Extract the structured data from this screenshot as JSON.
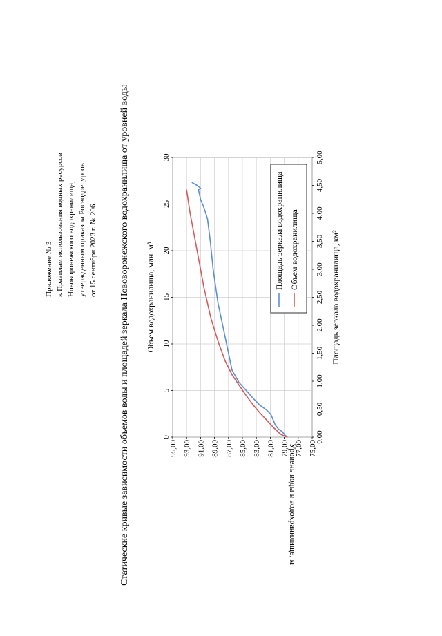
{
  "header": {
    "lines": [
      "Приложение № 3",
      "к Правилам использования водных ресурсов",
      "Нововоронежского водохранилища,",
      "утвержденным приказом Росводресурсов",
      "от 15 сентября 2023 г. № 206"
    ]
  },
  "chart_data": {
    "type": "line",
    "title": "Статические кривые зависимости объемов воды и площадей зеркала Нововоронежского водохранилища от уровней воды",
    "level_axis": {
      "label": "Уровень воды в водохранилище, м",
      "range": [
        75,
        95
      ],
      "ticks": [
        "75,00",
        "77,00",
        "79,00",
        "81,00",
        "83,00",
        "85,00",
        "87,00",
        "89,00",
        "91,00",
        "93,00",
        "95,00"
      ]
    },
    "volume_axis": {
      "label": "Объем водохранилища, млн. м³",
      "range": [
        0,
        30
      ],
      "ticks": [
        "0",
        "5",
        "10",
        "15",
        "20",
        "25",
        "30"
      ]
    },
    "area_axis": {
      "label": "Площадь зеркала водохранилища, км²",
      "range": [
        0,
        5
      ],
      "ticks": [
        "0,00",
        "0,50",
        "1,00",
        "1,50",
        "2,00",
        "2,50",
        "3,00",
        "3,50",
        "4,00",
        "4,50",
        "5,00"
      ]
    },
    "grid": true,
    "legend_position": "right",
    "series": [
      {
        "name": "Площадь зеркала водохранилища",
        "color": "#5b8fd6",
        "axis": "area",
        "points": [
          [
            78.6,
            0.0
          ],
          [
            79.0,
            0.05
          ],
          [
            79.3,
            0.1
          ],
          [
            79.8,
            0.14
          ],
          [
            80.3,
            0.22
          ],
          [
            80.9,
            0.4
          ],
          [
            81.5,
            0.48
          ],
          [
            82.5,
            0.57
          ],
          [
            83.5,
            0.7
          ],
          [
            84.5,
            0.84
          ],
          [
            85.5,
            0.98
          ],
          [
            86.5,
            1.2
          ],
          [
            87.5,
            1.8
          ],
          [
            88.5,
            2.4
          ],
          [
            89.2,
            3.0
          ],
          [
            89.6,
            3.5
          ],
          [
            90.0,
            3.9
          ],
          [
            90.5,
            4.1
          ],
          [
            91.0,
            4.25
          ],
          [
            91.3,
            4.42
          ],
          [
            91.0,
            4.45
          ],
          [
            91.3,
            4.48
          ],
          [
            91.5,
            4.5
          ],
          [
            92.2,
            4.55
          ]
        ]
      },
      {
        "name": "Объем водохранилища",
        "color": "#d65a5a",
        "axis": "volume",
        "points": [
          [
            78.6,
            0.0
          ],
          [
            79.5,
            0.3
          ],
          [
            80.5,
            1.0
          ],
          [
            81.5,
            1.8
          ],
          [
            82.5,
            2.6
          ],
          [
            83.5,
            3.5
          ],
          [
            84.5,
            4.5
          ],
          [
            85.5,
            5.6
          ],
          [
            86.5,
            6.7
          ],
          [
            87.5,
            8.2
          ],
          [
            88.5,
            10.3
          ],
          [
            89.5,
            12.7
          ],
          [
            90.5,
            16.0
          ],
          [
            91.5,
            20.0
          ],
          [
            92.5,
            24.0
          ],
          [
            93.0,
            26.5
          ]
        ]
      }
    ]
  }
}
